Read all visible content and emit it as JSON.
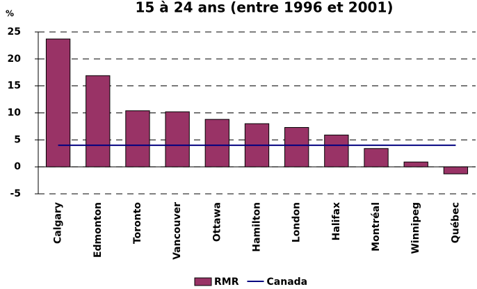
{
  "chart_data": {
    "type": "bar",
    "title": "15 à 24 ans (entre 1996 et 2001)",
    "y_label": "%",
    "categories": [
      "Calgary",
      "Edmonton",
      "Toronto",
      "Vancouver",
      "Ottawa",
      "Hamilton",
      "London",
      "Halifax",
      "Montréal",
      "Winnipeg",
      "Québec"
    ],
    "series": [
      {
        "name": "RMR",
        "color": "#993366",
        "type": "bar",
        "values": [
          23.7,
          16.9,
          10.4,
          10.2,
          8.8,
          8.0,
          7.3,
          5.9,
          3.4,
          0.9,
          -1.3
        ]
      },
      {
        "name": "Canada",
        "color": "#000080",
        "type": "line",
        "values": [
          4,
          4,
          4,
          4,
          4,
          4,
          4,
          4,
          4,
          4,
          4
        ]
      }
    ],
    "ylim": [
      -5,
      25
    ],
    "yticks": [
      -5,
      0,
      5,
      10,
      15,
      20,
      25
    ],
    "grid": true
  }
}
